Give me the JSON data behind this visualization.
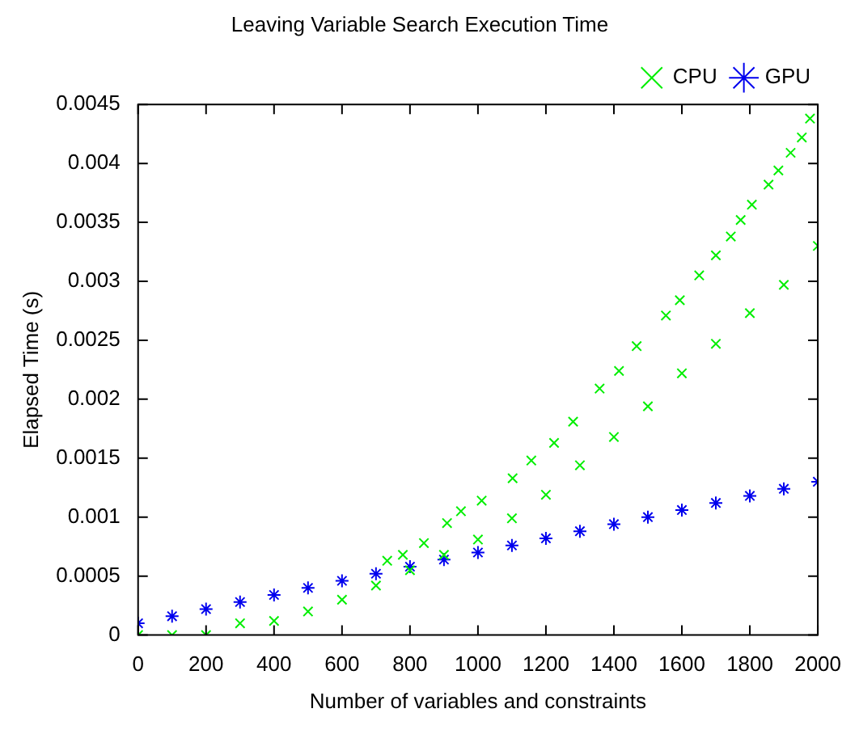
{
  "chart_data": {
    "type": "scatter",
    "title": "Leaving Variable Search Execution Time",
    "xlabel": "Number of variables and constraints",
    "ylabel": "Elapsed Time (s)",
    "xlim": [
      0,
      2000
    ],
    "xticks": [
      0,
      200,
      400,
      600,
      800,
      1000,
      1200,
      1400,
      1600,
      1800,
      2000
    ],
    "ylim": [
      0,
      0.0045
    ],
    "yticks": [
      0,
      0.0005,
      0.001,
      0.0015,
      0.002,
      0.0025,
      0.003,
      0.0035,
      0.004,
      0.0045
    ],
    "grid": false,
    "legend": "top right",
    "series": [
      {
        "name": "CPU",
        "color": "#00ee00",
        "marker": "cross",
        "x": [
          0,
          100,
          200,
          300,
          400,
          500,
          600,
          700,
          800,
          900,
          1000,
          1100,
          1200,
          1300,
          1400,
          1500,
          1600,
          1700,
          1800,
          1900,
          2000,
          733,
          779,
          841,
          909,
          950,
          1011,
          1102,
          1157,
          1224,
          1280,
          1358,
          1415,
          1467,
          1553,
          1594,
          1651,
          1700,
          1744,
          1773,
          1806,
          1855,
          1884,
          1920,
          1953,
          1977
        ],
        "values": [
          0,
          0,
          0,
          0.0001,
          0.00012,
          0.0002,
          0.0003,
          0.00042,
          0.00055,
          0.00068,
          0.00081,
          0.00099,
          0.00119,
          0.00144,
          0.00168,
          0.00194,
          0.00222,
          0.00247,
          0.00273,
          0.00297,
          0.0033,
          0.00063,
          0.00068,
          0.00078,
          0.00095,
          0.00105,
          0.00114,
          0.00133,
          0.00148,
          0.00163,
          0.00181,
          0.00209,
          0.00224,
          0.00245,
          0.00271,
          0.00284,
          0.00305,
          0.00322,
          0.00338,
          0.00352,
          0.00365,
          0.00382,
          0.00394,
          0.00409,
          0.00422,
          0.00438
        ]
      },
      {
        "name": "GPU",
        "color": "#0000ee",
        "x": [
          0,
          100,
          200,
          300,
          400,
          500,
          600,
          700,
          800,
          900,
          1000,
          1100,
          1200,
          1300,
          1400,
          1500,
          1600,
          1700,
          1800,
          1900,
          2000
        ],
        "values": [
          0.0001,
          0.00016,
          0.00022,
          0.00028,
          0.00034,
          0.0004,
          0.00046,
          0.00052,
          0.00058,
          0.00064,
          0.0007,
          0.00076,
          0.00082,
          0.00088,
          0.00094,
          0.001,
          0.00106,
          0.00112,
          0.00118,
          0.00124,
          0.0013
        ]
      }
    ]
  }
}
